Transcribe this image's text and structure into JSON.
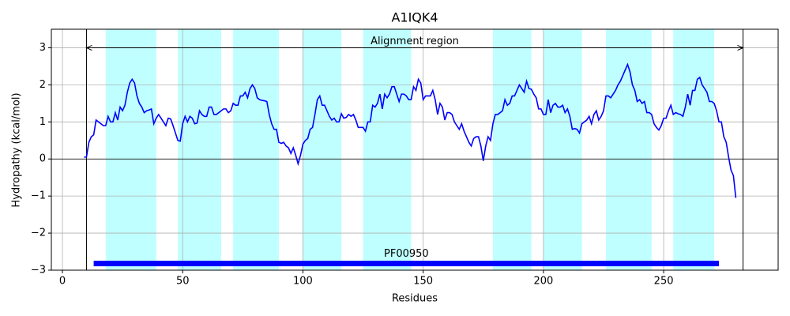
{
  "chart_data": {
    "type": "line",
    "title": "A1IQK4",
    "x_label": "Residues",
    "y_label": "Hydropathy (kcal/mol)",
    "xlim": [
      -4.6,
      297.6
    ],
    "ylim": [
      -3,
      3.5
    ],
    "xticks": [
      0,
      50,
      100,
      150,
      200,
      250
    ],
    "yticks": [
      {
        "value": -3,
        "label": "−3"
      },
      {
        "value": -2,
        "label": "−2"
      },
      {
        "value": -1,
        "label": "−1"
      },
      0,
      1,
      2,
      3
    ],
    "grid": true,
    "series": [
      {
        "color": "#0000ff",
        "x": [
          9,
          10,
          11,
          12,
          13,
          14,
          15,
          16,
          17,
          18,
          19,
          20,
          21,
          22,
          23,
          24,
          25,
          26,
          27,
          28,
          29,
          30,
          31,
          32,
          33,
          34,
          35,
          36,
          37,
          38,
          39,
          40,
          41,
          42,
          43,
          44,
          45,
          46,
          47,
          48,
          49,
          50,
          51,
          52,
          53,
          54,
          55,
          56,
          57,
          58,
          59,
          60,
          61,
          62,
          63,
          64,
          65,
          66,
          67,
          68,
          69,
          70,
          71,
          72,
          73,
          74,
          75,
          76,
          77,
          78,
          79,
          80,
          81,
          82,
          83,
          84,
          85,
          86,
          87,
          88,
          89,
          90,
          91,
          92,
          93,
          94,
          95,
          96,
          97,
          98,
          99,
          100,
          101,
          102,
          103,
          104,
          105,
          106,
          107,
          108,
          109,
          110,
          111,
          112,
          113,
          114,
          115,
          116,
          117,
          118,
          119,
          120,
          121,
          122,
          123,
          124,
          125,
          126,
          127,
          128,
          129,
          130,
          131,
          132,
          133,
          134,
          135,
          136,
          137,
          138,
          139,
          140,
          141,
          142,
          143,
          144,
          145,
          146,
          147,
          148,
          149,
          150,
          151,
          152,
          153,
          154,
          155,
          156,
          157,
          158,
          159,
          160,
          161,
          162,
          163,
          164,
          165,
          166,
          167,
          168,
          169,
          170,
          171,
          172,
          173,
          174,
          175,
          176,
          177,
          178,
          179,
          180,
          181,
          182,
          183,
          184,
          185,
          186,
          187,
          188,
          189,
          190,
          191,
          192,
          193,
          194,
          195,
          196,
          197,
          198,
          199,
          200,
          201,
          202,
          203,
          204,
          205,
          206,
          207,
          208,
          209,
          210,
          211,
          212,
          213,
          214,
          215,
          216,
          217,
          218,
          219,
          220,
          221,
          222,
          223,
          224,
          225,
          226,
          227,
          228,
          229,
          230,
          231,
          232,
          233,
          234,
          235,
          236,
          237,
          238,
          239,
          240,
          241,
          242,
          243,
          244,
          245,
          246,
          247,
          248,
          249,
          250,
          251,
          252,
          253,
          254,
          255,
          256,
          257,
          258,
          259,
          260,
          261,
          262,
          263,
          264,
          265,
          266,
          267,
          268,
          269,
          270,
          271,
          272,
          273,
          274,
          275,
          276,
          277,
          278,
          279,
          280
        ],
        "values": [
          0.05,
          0.05,
          0.45,
          0.6,
          0.65,
          1.05,
          1.0,
          0.95,
          0.9,
          0.9,
          1.15,
          1.0,
          1.0,
          1.25,
          1.05,
          1.4,
          1.3,
          1.45,
          1.8,
          2.05,
          2.15,
          2.05,
          1.7,
          1.5,
          1.4,
          1.25,
          1.3,
          1.32,
          1.35,
          0.95,
          1.1,
          1.2,
          1.1,
          1.0,
          0.9,
          1.1,
          1.08,
          0.9,
          0.7,
          0.5,
          0.48,
          0.95,
          1.15,
          1.0,
          1.15,
          1.1,
          0.95,
          0.97,
          1.3,
          1.2,
          1.15,
          1.15,
          1.4,
          1.4,
          1.2,
          1.2,
          1.25,
          1.3,
          1.35,
          1.35,
          1.25,
          1.3,
          1.5,
          1.45,
          1.45,
          1.7,
          1.7,
          1.8,
          1.65,
          1.9,
          2.0,
          1.9,
          1.65,
          1.6,
          1.58,
          1.57,
          1.55,
          1.2,
          0.95,
          0.8,
          0.8,
          0.45,
          0.42,
          0.45,
          0.35,
          0.3,
          0.15,
          0.3,
          0.1,
          -0.13,
          0.1,
          0.4,
          0.5,
          0.55,
          0.8,
          0.85,
          1.2,
          1.6,
          1.7,
          1.45,
          1.45,
          1.3,
          1.15,
          1.05,
          1.1,
          1.0,
          1.0,
          1.22,
          1.1,
          1.12,
          1.2,
          1.15,
          1.2,
          1.05,
          0.85,
          0.85,
          0.85,
          0.75,
          1.0,
          1.0,
          1.45,
          1.4,
          1.5,
          1.75,
          1.35,
          1.75,
          1.65,
          1.75,
          1.95,
          1.95,
          1.75,
          1.55,
          1.75,
          1.75,
          1.7,
          1.6,
          1.6,
          1.95,
          1.85,
          2.15,
          2.05,
          1.6,
          1.7,
          1.7,
          1.7,
          1.85,
          1.6,
          1.2,
          1.5,
          1.4,
          1.05,
          1.25,
          1.25,
          1.2,
          1.0,
          0.9,
          0.8,
          0.95,
          0.75,
          0.6,
          0.45,
          0.35,
          0.55,
          0.6,
          0.6,
          0.35,
          -0.05,
          0.35,
          0.6,
          0.5,
          0.95,
          1.2,
          1.2,
          1.25,
          1.3,
          1.6,
          1.45,
          1.5,
          1.7,
          1.7,
          1.85,
          2.0,
          1.9,
          1.8,
          2.1,
          1.9,
          1.88,
          1.75,
          1.65,
          1.35,
          1.35,
          1.2,
          1.2,
          1.6,
          1.25,
          1.45,
          1.5,
          1.4,
          1.4,
          1.45,
          1.25,
          1.35,
          1.15,
          0.8,
          0.82,
          0.8,
          0.7,
          0.95,
          1.0,
          1.05,
          1.15,
          0.95,
          1.2,
          1.3,
          1.05,
          1.15,
          1.3,
          1.7,
          1.7,
          1.65,
          1.75,
          1.85,
          2.0,
          2.1,
          2.25,
          2.4,
          2.55,
          2.35,
          2.0,
          1.85,
          1.55,
          1.6,
          1.5,
          1.55,
          1.25,
          1.25,
          1.2,
          0.95,
          0.85,
          0.78,
          0.9,
          1.1,
          1.1,
          1.3,
          1.45,
          1.2,
          1.25,
          1.22,
          1.2,
          1.15,
          1.4,
          1.75,
          1.45,
          1.85,
          1.85,
          2.15,
          2.2,
          2.0,
          1.9,
          1.8,
          1.55,
          1.55,
          1.5,
          1.3,
          1.0,
          1.0,
          0.6,
          0.45,
          0.05,
          -0.3,
          -0.45,
          -1.05
        ]
      }
    ],
    "regions": {
      "color": "#bfffff",
      "spans": [
        {
          "start": 18,
          "end": 39
        },
        {
          "start": 48,
          "end": 66
        },
        {
          "start": 71,
          "end": 90
        },
        {
          "start": 100,
          "end": 116
        },
        {
          "start": 125,
          "end": 145
        },
        {
          "start": 179,
          "end": 195
        },
        {
          "start": 200,
          "end": 216
        },
        {
          "start": 226,
          "end": 245
        },
        {
          "start": 254,
          "end": 271
        }
      ]
    },
    "alignment_region": {
      "label": "Alignment region",
      "start": 10,
      "end": 283,
      "y": 3
    },
    "domain": {
      "label": "PF00950",
      "start": 13,
      "end": 273,
      "y": -2.82,
      "color": "#0000ff"
    }
  }
}
